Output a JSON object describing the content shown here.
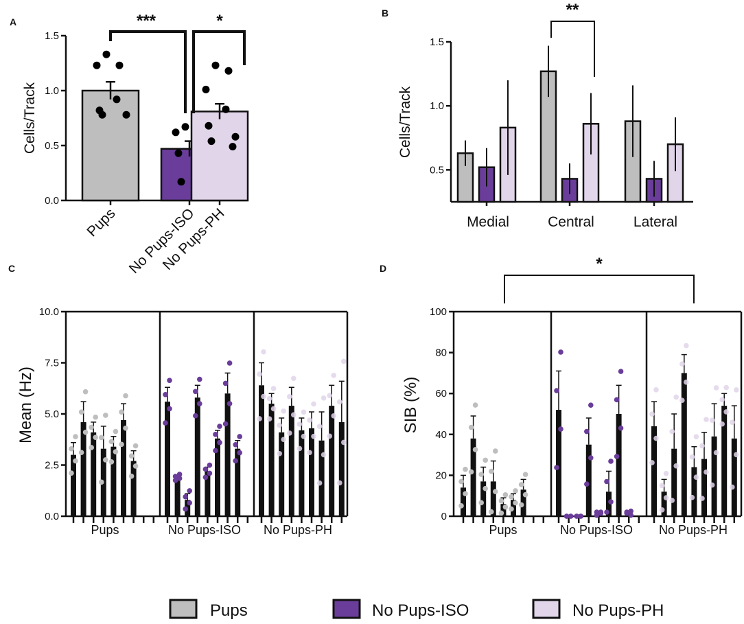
{
  "colors": {
    "pups": "#bebebe",
    "iso": "#6a3d9a",
    "ph": "#e1d5ea",
    "axis": "#111111"
  },
  "legend": [
    {
      "label": "Pups",
      "color": "#bebebe"
    },
    {
      "label": "No Pups-ISO",
      "color": "#6a3d9a"
    },
    {
      "label": "No Pups-PH",
      "color": "#e1d5ea"
    }
  ],
  "chart_data": [
    {
      "panel": "A",
      "type": "bar",
      "ylabel": "Cells/Track",
      "ylim": [
        0,
        1.5
      ],
      "yticks": [
        "0.0",
        "0.5",
        "1.0",
        "1.5"
      ],
      "categories": [
        "Pups",
        "No Pups-ISO",
        "No Pups-PH"
      ],
      "values": [
        1.0,
        0.47,
        0.81
      ],
      "sem": [
        0.08,
        0.07,
        0.07
      ],
      "points": [
        [
          1.33,
          1.23,
          1.23,
          0.92,
          0.82,
          0.78,
          0.78
        ],
        [
          0.67,
          0.67,
          0.62,
          0.52,
          0.43,
          0.2,
          0.17
        ],
        [
          1.23,
          1.18,
          1.01,
          0.83,
          0.68,
          0.58,
          0.54,
          0.49
        ]
      ],
      "significance": [
        {
          "label": "***",
          "pair": [
            0,
            1
          ]
        },
        {
          "label": "*",
          "pair": [
            1,
            2
          ]
        }
      ]
    },
    {
      "panel": "B",
      "type": "bar",
      "ylabel": "Cells/Track",
      "ylim": [
        0.25,
        1.5
      ],
      "yticks": [
        "0.5",
        "1.0",
        "1.5"
      ],
      "categories": [
        "Medial",
        "Central",
        "Lateral"
      ],
      "series": [
        {
          "name": "Pups",
          "values": [
            0.63,
            1.27,
            0.88
          ],
          "err": [
            0.1,
            0.2,
            0.28
          ]
        },
        {
          "name": "No Pups-ISO",
          "values": [
            0.52,
            0.43,
            0.43
          ],
          "err": [
            0.15,
            0.12,
            0.14
          ]
        },
        {
          "name": "No Pups-PH",
          "values": [
            0.83,
            0.86,
            0.7
          ],
          "err": [
            0.37,
            0.24,
            0.21
          ]
        }
      ],
      "significance": [
        {
          "label": "**",
          "from": "Central Pups",
          "to": "Central No Pups-PH"
        }
      ]
    },
    {
      "panel": "C",
      "type": "bar",
      "ylabel": "Mean (Hz)",
      "ylim": [
        0,
        10
      ],
      "yticks": [
        "0.0",
        "2.5",
        "5.0",
        "7.5",
        "10.0"
      ],
      "groups": [
        {
          "label": "Pups",
          "values": [
            3.0,
            4.6,
            4.1,
            3.3,
            3.4,
            4.7,
            2.7
          ],
          "err": [
            0.6,
            1.0,
            0.5,
            1.1,
            0.5,
            0.8,
            0.5
          ]
        },
        {
          "label": "No Pups-ISO",
          "values": [
            5.6,
            1.9,
            0.8,
            5.8,
            2.2,
            3.8,
            6.0,
            3.3
          ],
          "err": [
            0.7,
            0.1,
            0.3,
            0.6,
            0.2,
            0.4,
            1.0,
            0.4
          ]
        },
        {
          "label": "No Pups-PH",
          "values": [
            6.4,
            5.5,
            4.1,
            5.4,
            4.2,
            4.3,
            3.7,
            5.4,
            4.6
          ],
          "err": [
            1.1,
            0.5,
            0.7,
            0.9,
            0.6,
            0.8,
            1.4,
            1.0,
            2.0
          ]
        }
      ]
    },
    {
      "panel": "D",
      "type": "bar",
      "ylabel": "SIB (%)",
      "ylim": [
        0,
        100
      ],
      "yticks": [
        "0",
        "20",
        "40",
        "60",
        "80",
        "100"
      ],
      "groups": [
        {
          "label": "Pups",
          "values": [
            14,
            38,
            17,
            17,
            6,
            8,
            13
          ],
          "err": [
            6,
            11,
            7,
            10,
            3,
            3,
            5
          ]
        },
        {
          "label": "No Pups-ISO",
          "values": [
            52,
            0,
            0,
            35,
            0,
            12,
            50,
            1
          ],
          "err": [
            19,
            0,
            0,
            13,
            1,
            10,
            14,
            1
          ]
        },
        {
          "label": "No Pups-PH",
          "values": [
            44,
            12,
            33,
            70,
            24,
            28,
            39,
            54,
            38
          ],
          "err": [
            12,
            6,
            17,
            9,
            10,
            13,
            16,
            6,
            16
          ]
        }
      ],
      "significance": [
        {
          "label": "*",
          "from": "Pups",
          "to": "No Pups-PH"
        }
      ]
    }
  ],
  "panels": {
    "a": "A",
    "b": "B",
    "c": "C",
    "d": "D"
  }
}
